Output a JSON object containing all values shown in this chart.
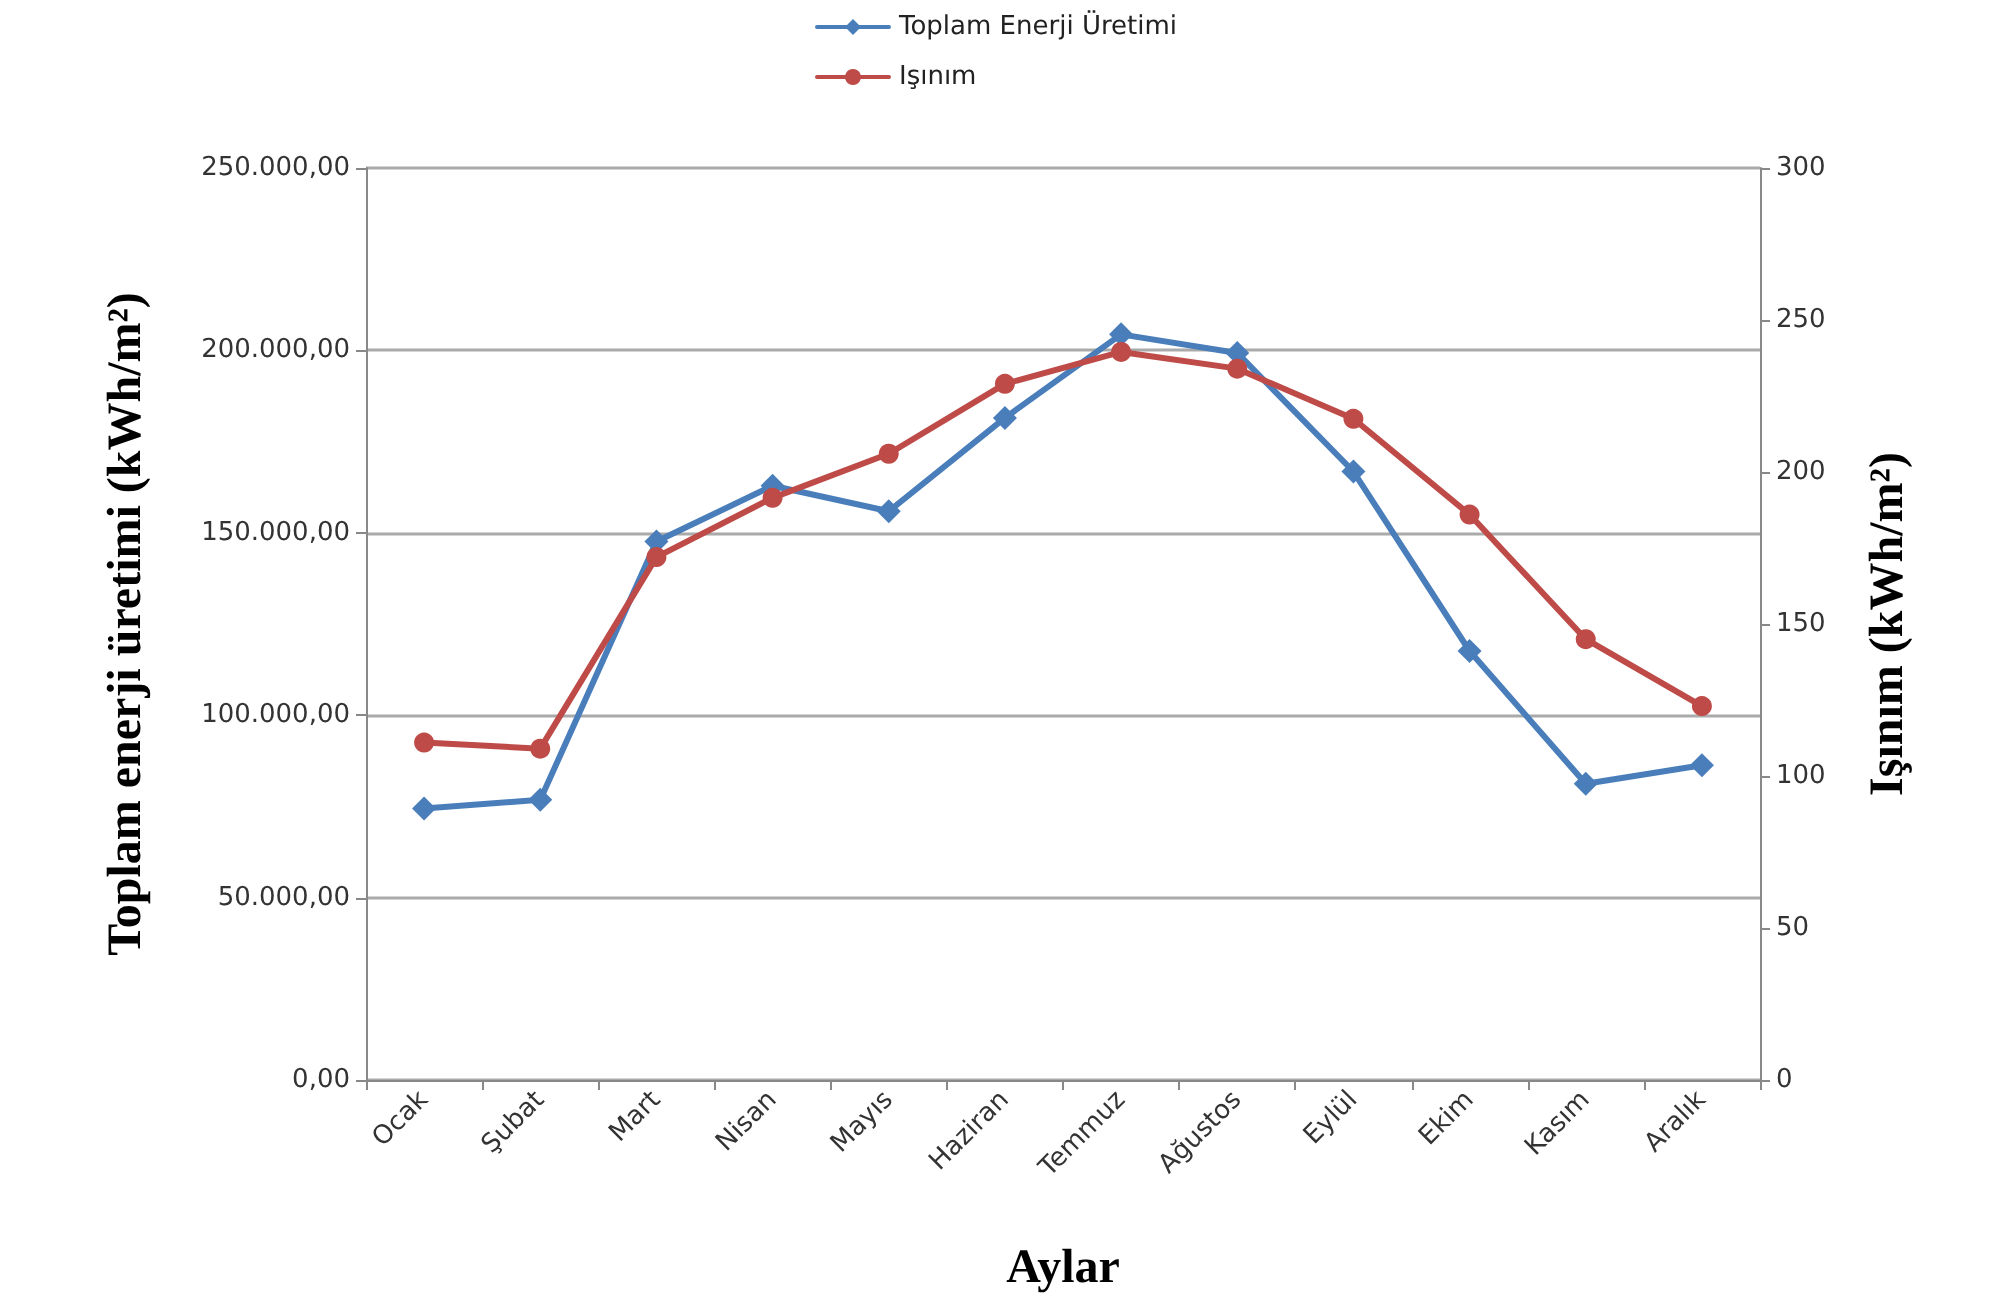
{
  "chart_data": {
    "type": "line",
    "xlabel": "Aylar",
    "ylabel": "Toplam enerji üretimi (kWh/m²)",
    "y2label": "Işınım (kWh/m²)",
    "categories": [
      "Ocak",
      "Şubat",
      "Mart",
      "Nisan",
      "Mayıs",
      "Haziran",
      "Temmuz",
      "Ağustos",
      "Eylül",
      "Ekim",
      "Kasım",
      "Aralık"
    ],
    "series": [
      {
        "name": "Toplam Enerji Üretimi",
        "color": "#4a7ebb",
        "marker": "diamond",
        "values": [
          74400,
          76800,
          147600,
          162900,
          155900,
          181500,
          204400,
          199300,
          166800,
          117600,
          81200,
          86300
        ]
      },
      {
        "name": "Işınım",
        "color": "#be4b48",
        "marker": "circle",
        "axis": "y2",
        "values": [
          111,
          109,
          172,
          191.5,
          206,
          229,
          239.5,
          234,
          217.5,
          186,
          145,
          123
        ]
      }
    ],
    "ylim": [
      0,
      250000
    ],
    "yticks": [
      {
        "value": 0,
        "label": "0,00"
      },
      {
        "value": 50000,
        "label": "50.000,00"
      },
      {
        "value": 100000,
        "label": "100.000,00"
      },
      {
        "value": 150000,
        "label": "150.000,00"
      },
      {
        "value": 200000,
        "label": "200.000,00"
      },
      {
        "value": 250000,
        "label": "250.000,00"
      }
    ],
    "y2lim": [
      0,
      300
    ],
    "y2ticks": [
      0,
      50,
      100,
      150,
      200,
      250,
      300
    ],
    "grid": "y",
    "legend": "top",
    "line_style": "solid"
  }
}
